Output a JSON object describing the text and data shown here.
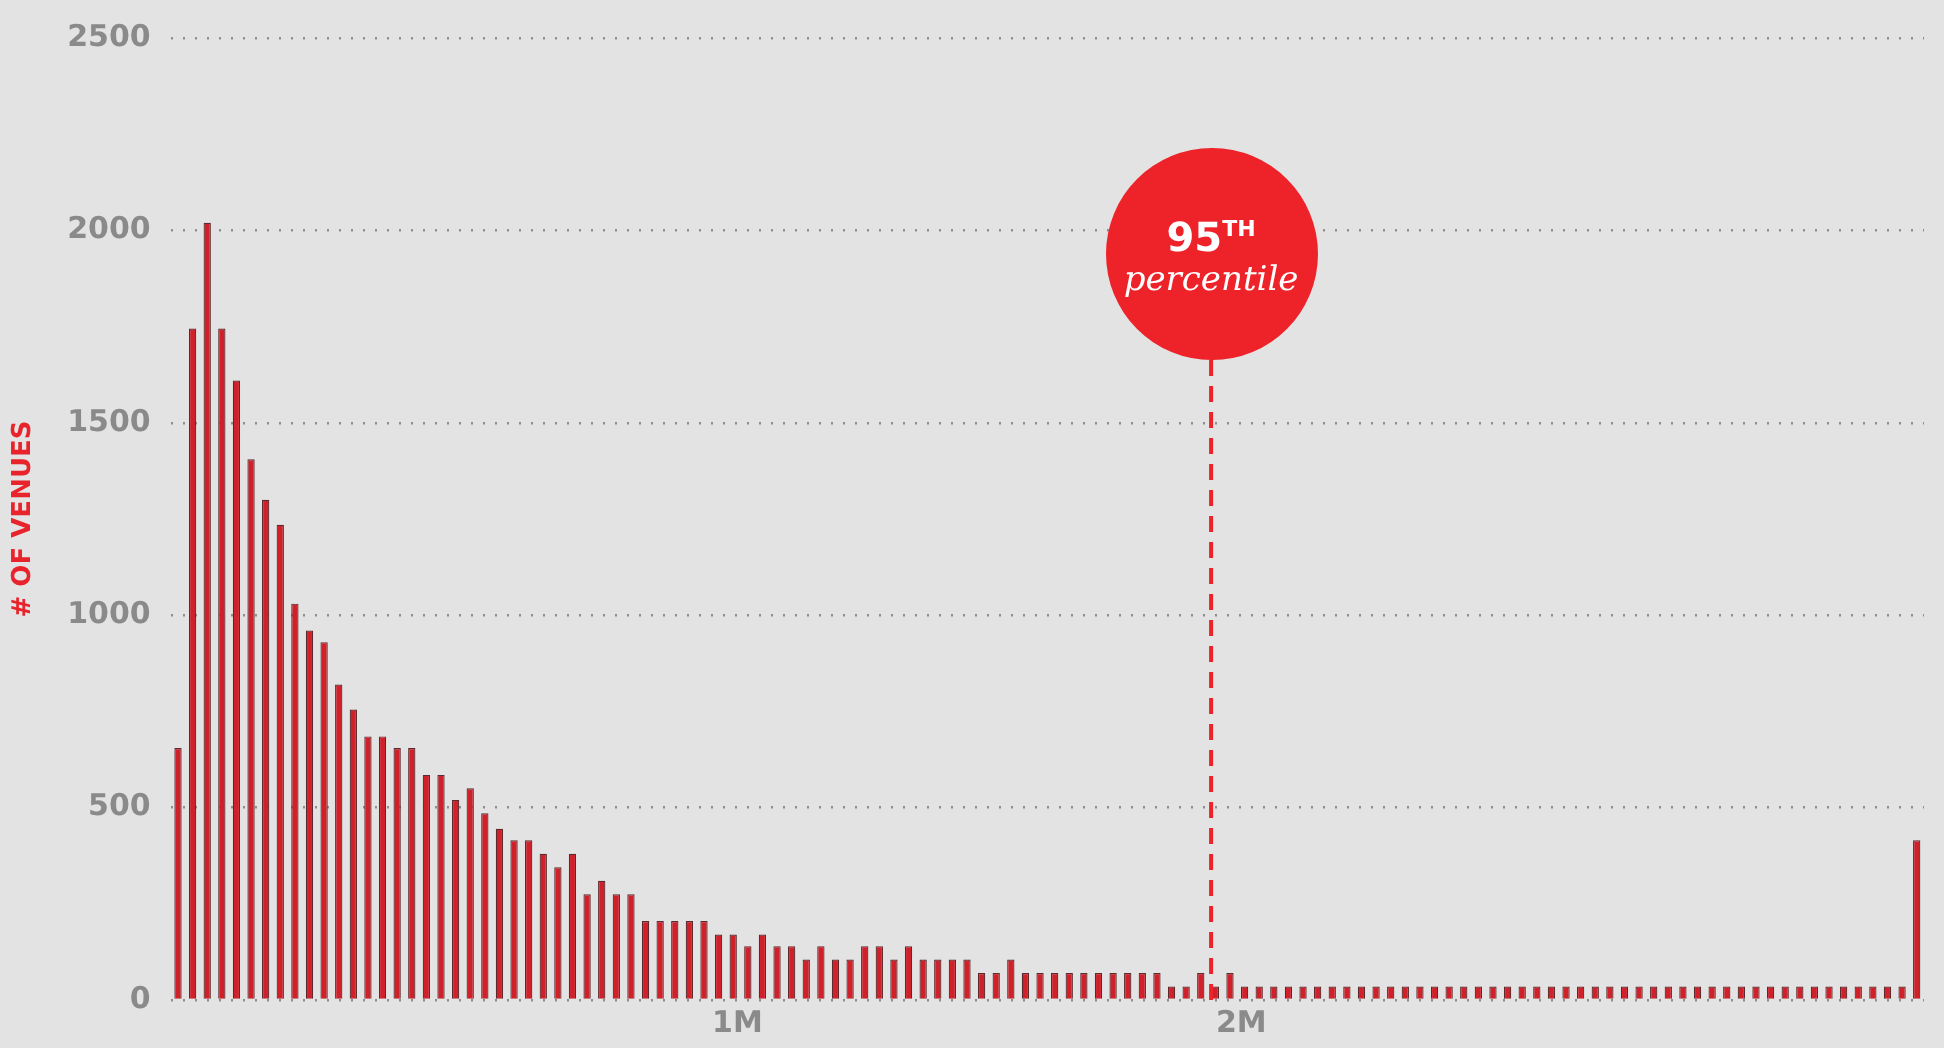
{
  "chart_data": {
    "type": "histogram",
    "ylabel": "# OF VENUES",
    "bins": [
      -125000,
      -96000,
      -67000,
      -38000,
      -9000,
      20000,
      49000,
      78000,
      107000,
      136000,
      165000,
      194000,
      223000,
      252000,
      281000,
      310000,
      339000,
      368000,
      397000,
      426000,
      455000,
      484000,
      513000,
      542000,
      571000,
      600000,
      629000,
      658000,
      687000,
      716000,
      745000,
      774000,
      803000,
      832000,
      861000,
      890000,
      919000,
      948000,
      977000,
      1006000,
      1035000,
      1064000,
      1093000,
      1122000,
      1151000,
      1180000,
      1209000,
      1238000,
      1267000,
      1296000,
      1325000,
      1354000,
      1383000,
      1412000,
      1441000,
      1470000,
      1499000,
      1528000,
      1557000,
      1586000,
      1615000,
      1644000,
      1673000,
      1702000,
      1731000,
      1760000,
      1789000,
      1818000,
      1847000,
      1876000,
      1905000,
      1934000,
      1963000,
      1992000,
      2021000,
      2050000,
      2079000,
      2108000,
      2137000,
      2166000,
      2195000,
      2224000,
      2253000,
      2282000,
      2311000,
      2340000,
      2369000,
      2398000,
      2427000,
      2456000,
      2485000,
      2514000,
      2543000,
      2572000,
      2601000,
      2630000,
      2659000,
      2688000,
      2717000,
      2746000,
      2775000,
      2804000,
      2833000,
      2862000,
      2891000,
      2920000,
      2949000,
      2978000,
      3007000,
      3036000,
      3065000,
      3094000,
      3123000,
      3152000,
      3181000,
      3210000,
      3239000,
      3268000,
      3297000,
      3326000,
      3355000
    ],
    "values": [
      655,
      1745,
      2020,
      1745,
      1610,
      1405,
      1300,
      1235,
      1030,
      960,
      930,
      820,
      755,
      685,
      685,
      655,
      655,
      585,
      585,
      520,
      550,
      485,
      445,
      415,
      415,
      380,
      345,
      380,
      275,
      310,
      275,
      275,
      205,
      205,
      205,
      205,
      205,
      170,
      170,
      140,
      170,
      140,
      140,
      105,
      140,
      105,
      105,
      140,
      140,
      105,
      140,
      105,
      105,
      105,
      105,
      70,
      70,
      105,
      70,
      70,
      70,
      70,
      70,
      70,
      70,
      70,
      70,
      70,
      35,
      35,
      70,
      35,
      70,
      35,
      35,
      35,
      35,
      35,
      35,
      35,
      35,
      35,
      35,
      35,
      35,
      35,
      35,
      35,
      35,
      35,
      35,
      35,
      35,
      35,
      35,
      35,
      35,
      35,
      35,
      35,
      35,
      35,
      35,
      35,
      35,
      35,
      35,
      35,
      35,
      35,
      35,
      35,
      35,
      35,
      35,
      35,
      35,
      35,
      35,
      415
    ],
    "color": "#d0202a",
    "xlim": [
      -125000,
      3355000
    ],
    "xticks": [
      {
        "value": 1000000,
        "label": "1M"
      },
      {
        "value": 2000000,
        "label": "2M"
      }
    ],
    "ylim": [
      0,
      2500
    ],
    "yticks": [
      0,
      500,
      1000,
      1500,
      2000,
      2500
    ],
    "grid": "y",
    "ref_lines": [
      {
        "axis": "x",
        "value": 1940000,
        "label": "95$^{TH}$ percentile",
        "color": "#ee2229",
        "line_style": "dashed"
      }
    ]
  }
}
